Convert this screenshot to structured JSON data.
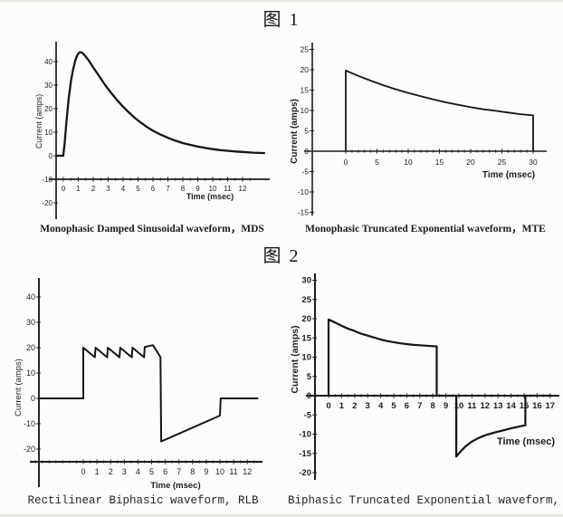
{
  "style": {
    "ink": "#1b1b1b",
    "paper": "#fcfcfa"
  },
  "figures": [
    {
      "label": "图 1"
    },
    {
      "label": "图 2"
    }
  ],
  "chart_data": [
    {
      "id": "mds",
      "type": "line",
      "title": "Monophasic Damped Sinusoidal waveform，MDS",
      "xlabel": "Time (msec)",
      "ylabel": "Current (amps)",
      "xlim": [
        -0.7,
        13.8
      ],
      "ylim": [
        -27,
        47
      ],
      "x_axis_at_current": -10,
      "grid": false,
      "x_ticks": [
        0,
        1,
        2,
        3,
        4,
        5,
        6,
        7,
        8,
        9,
        10,
        11,
        12
      ],
      "y_ticks": [
        40,
        30,
        20,
        10,
        0,
        -10,
        -20
      ],
      "peak_current_amps": 44,
      "peak_time_msec": 1.1,
      "points": [
        [
          -0.5,
          0
        ],
        [
          0,
          0
        ],
        [
          0,
          0.5
        ],
        [
          0.1,
          6
        ],
        [
          0.2,
          14
        ],
        [
          0.35,
          24
        ],
        [
          0.5,
          31.5
        ],
        [
          0.65,
          36.5
        ],
        [
          0.8,
          40.5
        ],
        [
          0.95,
          43
        ],
        [
          1.1,
          44
        ],
        [
          1.25,
          43.8
        ],
        [
          1.45,
          42.5
        ],
        [
          1.7,
          40.5
        ],
        [
          2,
          37.5
        ],
        [
          2.4,
          33.8
        ],
        [
          2.8,
          30
        ],
        [
          3.2,
          26.7
        ],
        [
          3.6,
          23.6
        ],
        [
          4,
          20.8
        ],
        [
          4.4,
          18.3
        ],
        [
          4.8,
          16
        ],
        [
          5.2,
          14
        ],
        [
          5.6,
          12.2
        ],
        [
          6,
          10.6
        ],
        [
          6.5,
          9
        ],
        [
          7,
          7.6
        ],
        [
          7.5,
          6.4
        ],
        [
          8,
          5.4
        ],
        [
          8.5,
          4.6
        ],
        [
          9,
          3.9
        ],
        [
          9.5,
          3.3
        ],
        [
          10,
          2.8
        ],
        [
          10.5,
          2.4
        ],
        [
          11,
          2.1
        ],
        [
          11.5,
          1.8
        ],
        [
          12,
          1.6
        ],
        [
          12.7,
          1.3
        ],
        [
          13.5,
          1.1
        ]
      ]
    },
    {
      "id": "mte",
      "type": "line",
      "title": "Monophasic Truncated Exponential waveform，MTE",
      "xlabel": "Time (msec)",
      "ylabel": "Current (amps)",
      "xlim": [
        -6.5,
        32
      ],
      "ylim": [
        -16.5,
        26.5
      ],
      "x_axis_at_current": 0,
      "grid": false,
      "x_ticks": [
        0,
        5,
        10,
        15,
        20,
        25,
        30
      ],
      "y_ticks": [
        25,
        20,
        15,
        10,
        5,
        0,
        -5,
        -10,
        -15
      ],
      "peak_current_amps": 19.8,
      "truncation_time_msec": 30,
      "points": [
        [
          0,
          0
        ],
        [
          0,
          19.8
        ],
        [
          2,
          18.5
        ],
        [
          4,
          17.3
        ],
        [
          6,
          16.2
        ],
        [
          8,
          15.2
        ],
        [
          10,
          14.3
        ],
        [
          12,
          13.5
        ],
        [
          14,
          12.7
        ],
        [
          16,
          12
        ],
        [
          18,
          11.4
        ],
        [
          20,
          10.8
        ],
        [
          22,
          10.3
        ],
        [
          24,
          9.9
        ],
        [
          26,
          9.5
        ],
        [
          28,
          9.1
        ],
        [
          30,
          8.8
        ],
        [
          30,
          0
        ]
      ]
    },
    {
      "id": "rlb",
      "type": "line",
      "title": "Rectilinear Biphasic waveform, RLB",
      "xlabel": "Time (msec)",
      "ylabel": "Current (amps)",
      "xlim": [
        -3.9,
        13.2
      ],
      "ylim": [
        -29,
        47
      ],
      "x_axis_at_current": -25,
      "grid": false,
      "x_ticks": [
        0,
        1,
        2,
        3,
        4,
        5,
        6,
        7,
        8,
        9,
        10,
        11,
        12
      ],
      "y_ticks": [
        40,
        30,
        20,
        10,
        0,
        -10,
        -20
      ],
      "positive_phase_amps": [
        16,
        21
      ],
      "negative_phase_amps": [
        -17,
        -6.8
      ],
      "points": [
        [
          -3.2,
          0
        ],
        [
          0,
          0
        ],
        [
          0,
          20
        ],
        [
          0.85,
          16.2
        ],
        [
          0.9,
          20
        ],
        [
          1.75,
          16.2
        ],
        [
          1.8,
          20
        ],
        [
          2.65,
          16.2
        ],
        [
          2.7,
          20
        ],
        [
          3.55,
          16.2
        ],
        [
          3.6,
          20
        ],
        [
          4.45,
          16.2
        ],
        [
          4.5,
          20.3
        ],
        [
          5.1,
          21
        ],
        [
          5.65,
          16.3
        ],
        [
          5.7,
          -17
        ],
        [
          10,
          -6.8
        ],
        [
          10.05,
          0
        ],
        [
          12.8,
          0
        ]
      ]
    },
    {
      "id": "bte",
      "type": "line",
      "title": "Biphasic Truncated Exponential waveform, BTE",
      "xlabel": "Time (msec)",
      "ylabel": "Current (amps)",
      "xlim": [
        -1.8,
        17.8
      ],
      "ylim": [
        -22,
        32
      ],
      "x_axis_at_current": 0,
      "grid": false,
      "x_ticks": [
        0,
        1,
        2,
        3,
        4,
        5,
        6,
        7,
        8,
        9,
        10,
        11,
        12,
        13,
        14,
        15,
        16,
        17
      ],
      "y_ticks": [
        30,
        25,
        20,
        15,
        10,
        5,
        0,
        -5,
        -10,
        -15,
        -20
      ],
      "positive_phase_amps": [
        19.8,
        12.8
      ],
      "negative_phase_amps": [
        -15.8,
        -7.7
      ],
      "points": [
        [
          0,
          0
        ],
        [
          0,
          19.8
        ],
        [
          0.5,
          19
        ],
        [
          1,
          18.2
        ],
        [
          1.5,
          17.4
        ],
        [
          2,
          16.8
        ],
        [
          2.5,
          16.1
        ],
        [
          3,
          15.6
        ],
        [
          3.5,
          15.1
        ],
        [
          4,
          14.6
        ],
        [
          4.5,
          14.2
        ],
        [
          5,
          13.9
        ],
        [
          5.5,
          13.6
        ],
        [
          6,
          13.4
        ],
        [
          6.5,
          13.2
        ],
        [
          7,
          13.1
        ],
        [
          7.5,
          13
        ],
        [
          8.3,
          12.8
        ],
        [
          8.3,
          0
        ],
        [
          9.8,
          0
        ],
        [
          9.8,
          -15.8
        ],
        [
          10.1,
          -14.6
        ],
        [
          10.5,
          -13.2
        ],
        [
          11,
          -11.9
        ],
        [
          11.5,
          -11
        ],
        [
          12,
          -10.3
        ],
        [
          12.7,
          -9.6
        ],
        [
          13.4,
          -9
        ],
        [
          14.1,
          -8.4
        ],
        [
          14.8,
          -7.9
        ],
        [
          15.1,
          -7.7
        ],
        [
          15.1,
          0
        ],
        [
          17.1,
          0
        ]
      ]
    }
  ]
}
